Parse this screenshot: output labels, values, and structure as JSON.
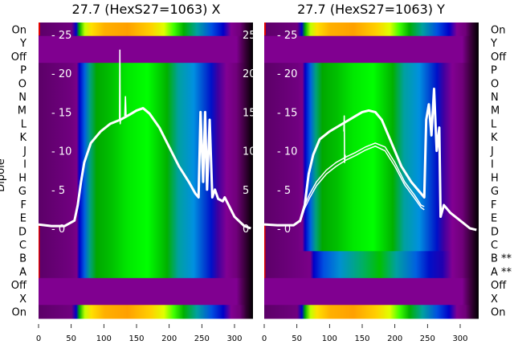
{
  "chart_data": [
    {
      "type": "heatmap",
      "title": "27.7 (HexS27=1063) X",
      "ylabel": "Dipole",
      "xlim": [
        0,
        325
      ],
      "xticks": [
        0,
        50,
        100,
        150,
        200,
        250,
        300
      ],
      "inner_yticks": [
        25,
        20,
        15,
        10,
        5,
        0
      ],
      "inner_ylim": [
        -11.5,
        26.5
      ],
      "row_labels": [
        "On",
        "Y",
        "Off",
        "P",
        "O",
        "N",
        "M",
        "L",
        "K",
        "J",
        "I",
        "H",
        "G",
        "F",
        "E",
        "D",
        "C",
        "B",
        "A",
        "Off",
        "X",
        "On"
      ],
      "row_types": [
        "on",
        "off",
        "off",
        "beam",
        "beam",
        "beam",
        "beam",
        "beam",
        "beam",
        "beam",
        "beam",
        "beam",
        "beam",
        "beam",
        "beam",
        "beam",
        "beam",
        "beam",
        "beam",
        "off",
        "off",
        "on"
      ],
      "series": [
        {
          "name": "profile",
          "x": [
            0,
            20,
            40,
            55,
            60,
            65,
            70,
            80,
            95,
            110,
            125,
            140,
            150,
            160,
            170,
            185,
            200,
            215,
            230,
            240,
            245,
            248,
            252,
            255,
            258,
            262,
            266,
            270,
            275,
            282,
            285,
            300,
            315,
            325
          ],
          "y": [
            0.5,
            0.3,
            0.3,
            1,
            3,
            6,
            8.5,
            11,
            12.5,
            13.5,
            14,
            14.7,
            15.2,
            15.5,
            14.8,
            13,
            10.5,
            8,
            6,
            4.5,
            4,
            15,
            6,
            15,
            5,
            14,
            4,
            5,
            3.8,
            3.5,
            4,
            1.5,
            0.3,
            0
          ]
        },
        {
          "name": "spike",
          "x": [
            124,
            124.5,
            125,
            125.5,
            126
          ],
          "y": [
            14,
            23,
            13.5,
            14,
            14
          ]
        },
        {
          "name": "spike2",
          "x": [
            132,
            133,
            134
          ],
          "y": [
            14.5,
            17,
            14.5
          ]
        }
      ]
    },
    {
      "type": "heatmap",
      "title": "27.7 (HexS27=1063) Y",
      "xlim": [
        0,
        325
      ],
      "xticks": [
        0,
        50,
        100,
        150,
        200,
        250,
        300
      ],
      "inner_yticks": [
        25,
        20,
        15,
        10,
        5,
        0
      ],
      "inner_ylim": [
        -11.5,
        26.5
      ],
      "row_labels": [
        "On",
        "Y",
        "Off",
        "P",
        "O",
        "N",
        "M",
        "L",
        "K",
        "J",
        "I",
        "H",
        "G",
        "F",
        "E",
        "D",
        "C",
        "B **",
        "A **",
        "Off",
        "X",
        "On"
      ],
      "row_types": [
        "on",
        "off",
        "off",
        "beam",
        "beam",
        "beam",
        "beam",
        "beam",
        "beam",
        "beam",
        "beam",
        "beam",
        "beam",
        "beam",
        "beam",
        "beam",
        "beam",
        "weak",
        "weak",
        "off",
        "off",
        "on"
      ],
      "series": [
        {
          "name": "profile-main",
          "x": [
            0,
            20,
            45,
            55,
            62,
            68,
            75,
            85,
            100,
            120,
            140,
            150,
            160,
            170,
            180,
            195,
            210,
            225,
            240,
            245,
            248,
            252,
            256,
            260,
            264,
            268,
            270,
            275,
            280,
            285,
            300,
            315,
            325
          ],
          "y": [
            0.5,
            0.4,
            0.4,
            1,
            3,
            7,
            9.5,
            11.5,
            12.5,
            13.5,
            14.5,
            15,
            15.2,
            15,
            14,
            11,
            8,
            6,
            4.5,
            4,
            14,
            16,
            12,
            18,
            10,
            13,
            1.5,
            3,
            2.5,
            2,
            1,
            0,
            -0.2
          ]
        },
        {
          "name": "profile-low-1",
          "x": [
            55,
            62,
            70,
            80,
            95,
            110,
            125,
            140,
            155,
            170,
            185,
            200,
            215,
            230,
            240,
            245
          ],
          "y": [
            1,
            3,
            4.5,
            6,
            7.5,
            8.5,
            9.2,
            9.8,
            10.5,
            11,
            10.5,
            8.5,
            6,
            4.3,
            3,
            2.8
          ]
        },
        {
          "name": "profile-low-2",
          "x": [
            55,
            62,
            70,
            80,
            95,
            110,
            125,
            140,
            155,
            170,
            185,
            200,
            215,
            230,
            240,
            245
          ],
          "y": [
            0.8,
            2.6,
            4,
            5.5,
            7,
            8,
            8.8,
            9.4,
            10.1,
            10.6,
            10,
            8,
            5.6,
            3.9,
            2.7,
            2.4
          ]
        },
        {
          "name": "spike",
          "x": [
            122,
            122.5,
            123,
            123.5,
            124
          ],
          "y": [
            12.5,
            14.5,
            8.5,
            9,
            9.5
          ]
        }
      ]
    }
  ],
  "colormaps": {
    "beam": [
      [
        0,
        "#5c0068"
      ],
      [
        50,
        "#70007f"
      ],
      [
        58,
        "#7a0088"
      ],
      [
        62,
        "#0000c8"
      ],
      [
        70,
        "#0060e0"
      ],
      [
        78,
        "#00a080"
      ],
      [
        88,
        "#00a800"
      ],
      [
        110,
        "#00c000"
      ],
      [
        135,
        "#00e800"
      ],
      [
        165,
        "#00ff00"
      ],
      [
        195,
        "#00b000"
      ],
      [
        212,
        "#00a0a0"
      ],
      [
        235,
        "#0090e0"
      ],
      [
        262,
        "#0010c8"
      ],
      [
        272,
        "#4000a0"
      ],
      [
        285,
        "#820092"
      ],
      [
        300,
        "#70007a"
      ],
      [
        315,
        "#300030"
      ],
      [
        325,
        "#000000"
      ]
    ],
    "weak": [
      [
        0,
        "#5c0068"
      ],
      [
        50,
        "#70007f"
      ],
      [
        70,
        "#7a0088"
      ],
      [
        75,
        "#0000c8"
      ],
      [
        90,
        "#0050e0"
      ],
      [
        115,
        "#0090d0"
      ],
      [
        150,
        "#00b060"
      ],
      [
        175,
        "#00c000"
      ],
      [
        200,
        "#00a0a0"
      ],
      [
        230,
        "#0060e0"
      ],
      [
        250,
        "#0010c8"
      ],
      [
        270,
        "#2000b0"
      ],
      [
        285,
        "#820092"
      ],
      [
        300,
        "#70007a"
      ],
      [
        315,
        "#300030"
      ],
      [
        325,
        "#000000"
      ]
    ],
    "on": [
      [
        0,
        "#5c0068"
      ],
      [
        50,
        "#70007f"
      ],
      [
        57,
        "#0000c8"
      ],
      [
        62,
        "#00b000"
      ],
      [
        70,
        "#c0ff00"
      ],
      [
        80,
        "#ffe000"
      ],
      [
        100,
        "#ffb000"
      ],
      [
        135,
        "#ffa000"
      ],
      [
        170,
        "#ffd000"
      ],
      [
        190,
        "#e0ff00"
      ],
      [
        205,
        "#40ff00"
      ],
      [
        220,
        "#00b000"
      ],
      [
        240,
        "#00a0a0"
      ],
      [
        262,
        "#0050e0"
      ],
      [
        280,
        "#0000c8"
      ],
      [
        292,
        "#820092"
      ],
      [
        305,
        "#70007a"
      ],
      [
        315,
        "#300030"
      ],
      [
        325,
        "#000000"
      ]
    ],
    "off": [
      [
        0,
        "#800090"
      ],
      [
        300,
        "#800090"
      ],
      [
        312,
        "#400040"
      ],
      [
        325,
        "#000000"
      ]
    ]
  },
  "line_color": "#ffffff"
}
